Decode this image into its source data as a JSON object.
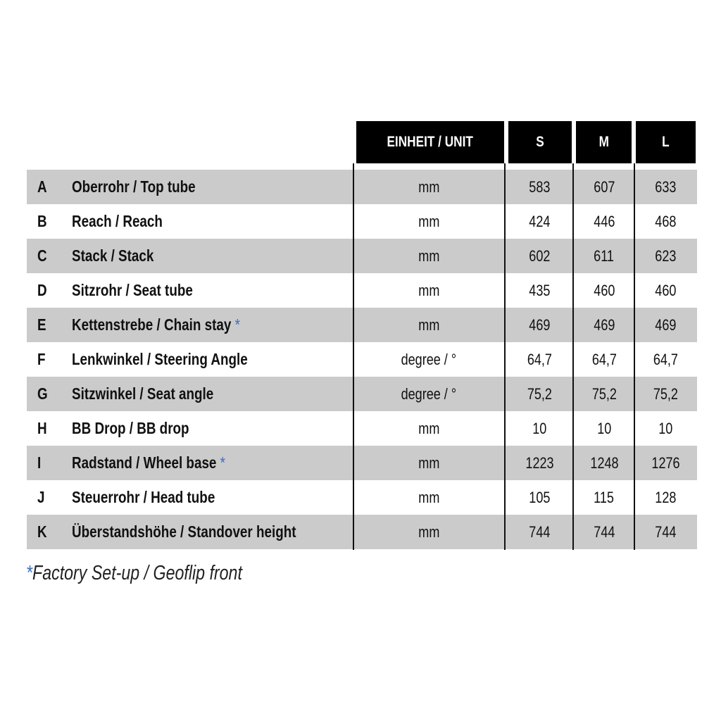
{
  "header": {
    "unit": "EINHEIT / UNIT",
    "sizes": [
      "S",
      "M",
      "L"
    ]
  },
  "rows": [
    {
      "letter": "A",
      "label": "Oberrohr / Top tube",
      "footnote": false,
      "unit": "mm",
      "values": [
        "583",
        "607",
        "633"
      ]
    },
    {
      "letter": "B",
      "label": "Reach / Reach",
      "footnote": false,
      "unit": "mm",
      "values": [
        "424",
        "446",
        "468"
      ]
    },
    {
      "letter": "C",
      "label": "Stack / Stack",
      "footnote": false,
      "unit": "mm",
      "values": [
        "602",
        "611",
        "623"
      ]
    },
    {
      "letter": "D",
      "label": "Sitzrohr / Seat tube",
      "footnote": false,
      "unit": "mm",
      "values": [
        "435",
        "460",
        "460"
      ]
    },
    {
      "letter": "E",
      "label": "Kettenstrebe / Chain stay",
      "footnote": true,
      "unit": "mm",
      "values": [
        "469",
        "469",
        "469"
      ]
    },
    {
      "letter": "F",
      "label": "Lenkwinkel / Steering Angle",
      "footnote": false,
      "unit": "degree  / °",
      "values": [
        "64,7",
        "64,7",
        "64,7"
      ]
    },
    {
      "letter": "G",
      "label": "Sitzwinkel / Seat angle",
      "footnote": false,
      "unit": "degree / °",
      "values": [
        "75,2",
        "75,2",
        "75,2"
      ]
    },
    {
      "letter": "H",
      "label": "BB Drop / BB drop",
      "footnote": false,
      "unit": "mm",
      "values": [
        "10",
        "10",
        "10"
      ]
    },
    {
      "letter": "I",
      "label": "Radstand / Wheel base",
      "footnote": true,
      "unit": "mm",
      "values": [
        "1223",
        "1248",
        "1276"
      ]
    },
    {
      "letter": "J",
      "label": "Steuerrohr / Head tube",
      "footnote": false,
      "unit": "mm",
      "values": [
        "105",
        "115",
        "128"
      ]
    },
    {
      "letter": "K",
      "label": "Überstandshöhe / Standover height",
      "footnote": false,
      "unit": "mm",
      "values": [
        "744",
        "744",
        "744"
      ]
    }
  ],
  "footnote": {
    "marker": "*",
    "text": "Factory Set-up / Geoflip front"
  },
  "colors": {
    "header_bg": "#000000",
    "row_stripe": "#cbcbcb",
    "footnote_marker": "#3a6fc4"
  }
}
